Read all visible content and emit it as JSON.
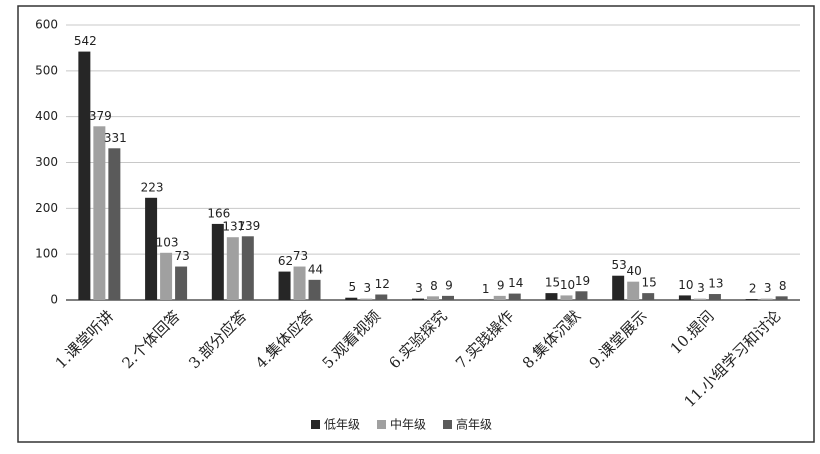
{
  "chart_data": {
    "type": "bar",
    "categories": [
      "1.课堂听讲",
      "2.个体回答",
      "3.部分应答",
      "4.集体应答",
      "5.观看视频",
      "6.实验探究",
      "7.实践操作",
      "8.集体沉默",
      "9.课堂展示",
      "10.提问",
      "11.小组学习和讨论"
    ],
    "series": [
      {
        "name": "低年级",
        "color": "#262626",
        "values": [
          542,
          223,
          166,
          62,
          5,
          3,
          1,
          15,
          53,
          10,
          2
        ]
      },
      {
        "name": "中年级",
        "color": "#a0a0a0",
        "values": [
          379,
          103,
          137,
          73,
          3,
          8,
          9,
          10,
          40,
          3,
          3
        ]
      },
      {
        "name": "高年级",
        "color": "#5a5a5a",
        "values": [
          331,
          73,
          139,
          44,
          12,
          9,
          14,
          19,
          15,
          13,
          8
        ]
      }
    ],
    "ylim": [
      0,
      600
    ],
    "yticks": [
      0,
      100,
      200,
      300,
      400,
      500,
      600
    ],
    "grid": true,
    "legend": "bottom"
  }
}
